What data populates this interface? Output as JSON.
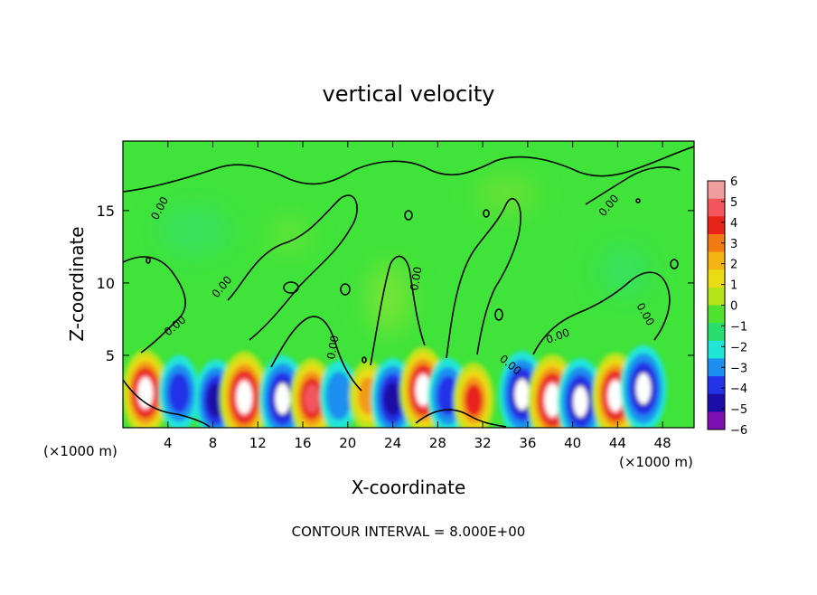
{
  "chart_data": {
    "type": "heatmap",
    "title": "vertical velocity",
    "xlabel": "X-coordinate",
    "ylabel": "Z-coordinate",
    "x_unit_left": "(×1000 m)",
    "x_unit_right": "(×1000 m)",
    "footer": "CONTOUR INTERVAL = 8.000E+00",
    "xlim": [
      0,
      50.8
    ],
    "ylim": [
      0,
      19.8
    ],
    "x_ticks": [
      4,
      8,
      12,
      16,
      20,
      24,
      28,
      32,
      36,
      40,
      44,
      48
    ],
    "y_ticks": [
      5,
      10,
      15
    ],
    "colorbar": {
      "ticks": [
        6,
        5,
        4,
        3,
        2,
        1,
        0,
        -1,
        -2,
        -3,
        -4,
        -5,
        -6
      ],
      "min": -6,
      "max": 6
    },
    "contour_labels": [
      "0.00"
    ],
    "cells": [
      {
        "x": 2.0,
        "z": 2.4,
        "v": 6
      },
      {
        "x": 5.0,
        "z": 2.4,
        "v": -4
      },
      {
        "x": 8.3,
        "z": 1.9,
        "v": -5
      },
      {
        "x": 10.8,
        "z": 2.1,
        "v": 7
      },
      {
        "x": 14.2,
        "z": 2.0,
        "v": -6
      },
      {
        "x": 16.8,
        "z": 2.0,
        "v": 5
      },
      {
        "x": 19.2,
        "z": 2.2,
        "v": -3
      },
      {
        "x": 21.8,
        "z": 2.2,
        "v": 3
      },
      {
        "x": 24.0,
        "z": 2.0,
        "v": -5
      },
      {
        "x": 26.7,
        "z": 2.6,
        "v": 6
      },
      {
        "x": 28.9,
        "z": 2.2,
        "v": -4
      },
      {
        "x": 31.2,
        "z": 1.9,
        "v": 4
      },
      {
        "x": 35.5,
        "z": 2.3,
        "v": -6
      },
      {
        "x": 38.2,
        "z": 1.9,
        "v": 7
      },
      {
        "x": 40.7,
        "z": 1.8,
        "v": -6
      },
      {
        "x": 43.8,
        "z": 2.2,
        "v": 6
      },
      {
        "x": 46.3,
        "z": 2.7,
        "v": -6
      }
    ]
  }
}
